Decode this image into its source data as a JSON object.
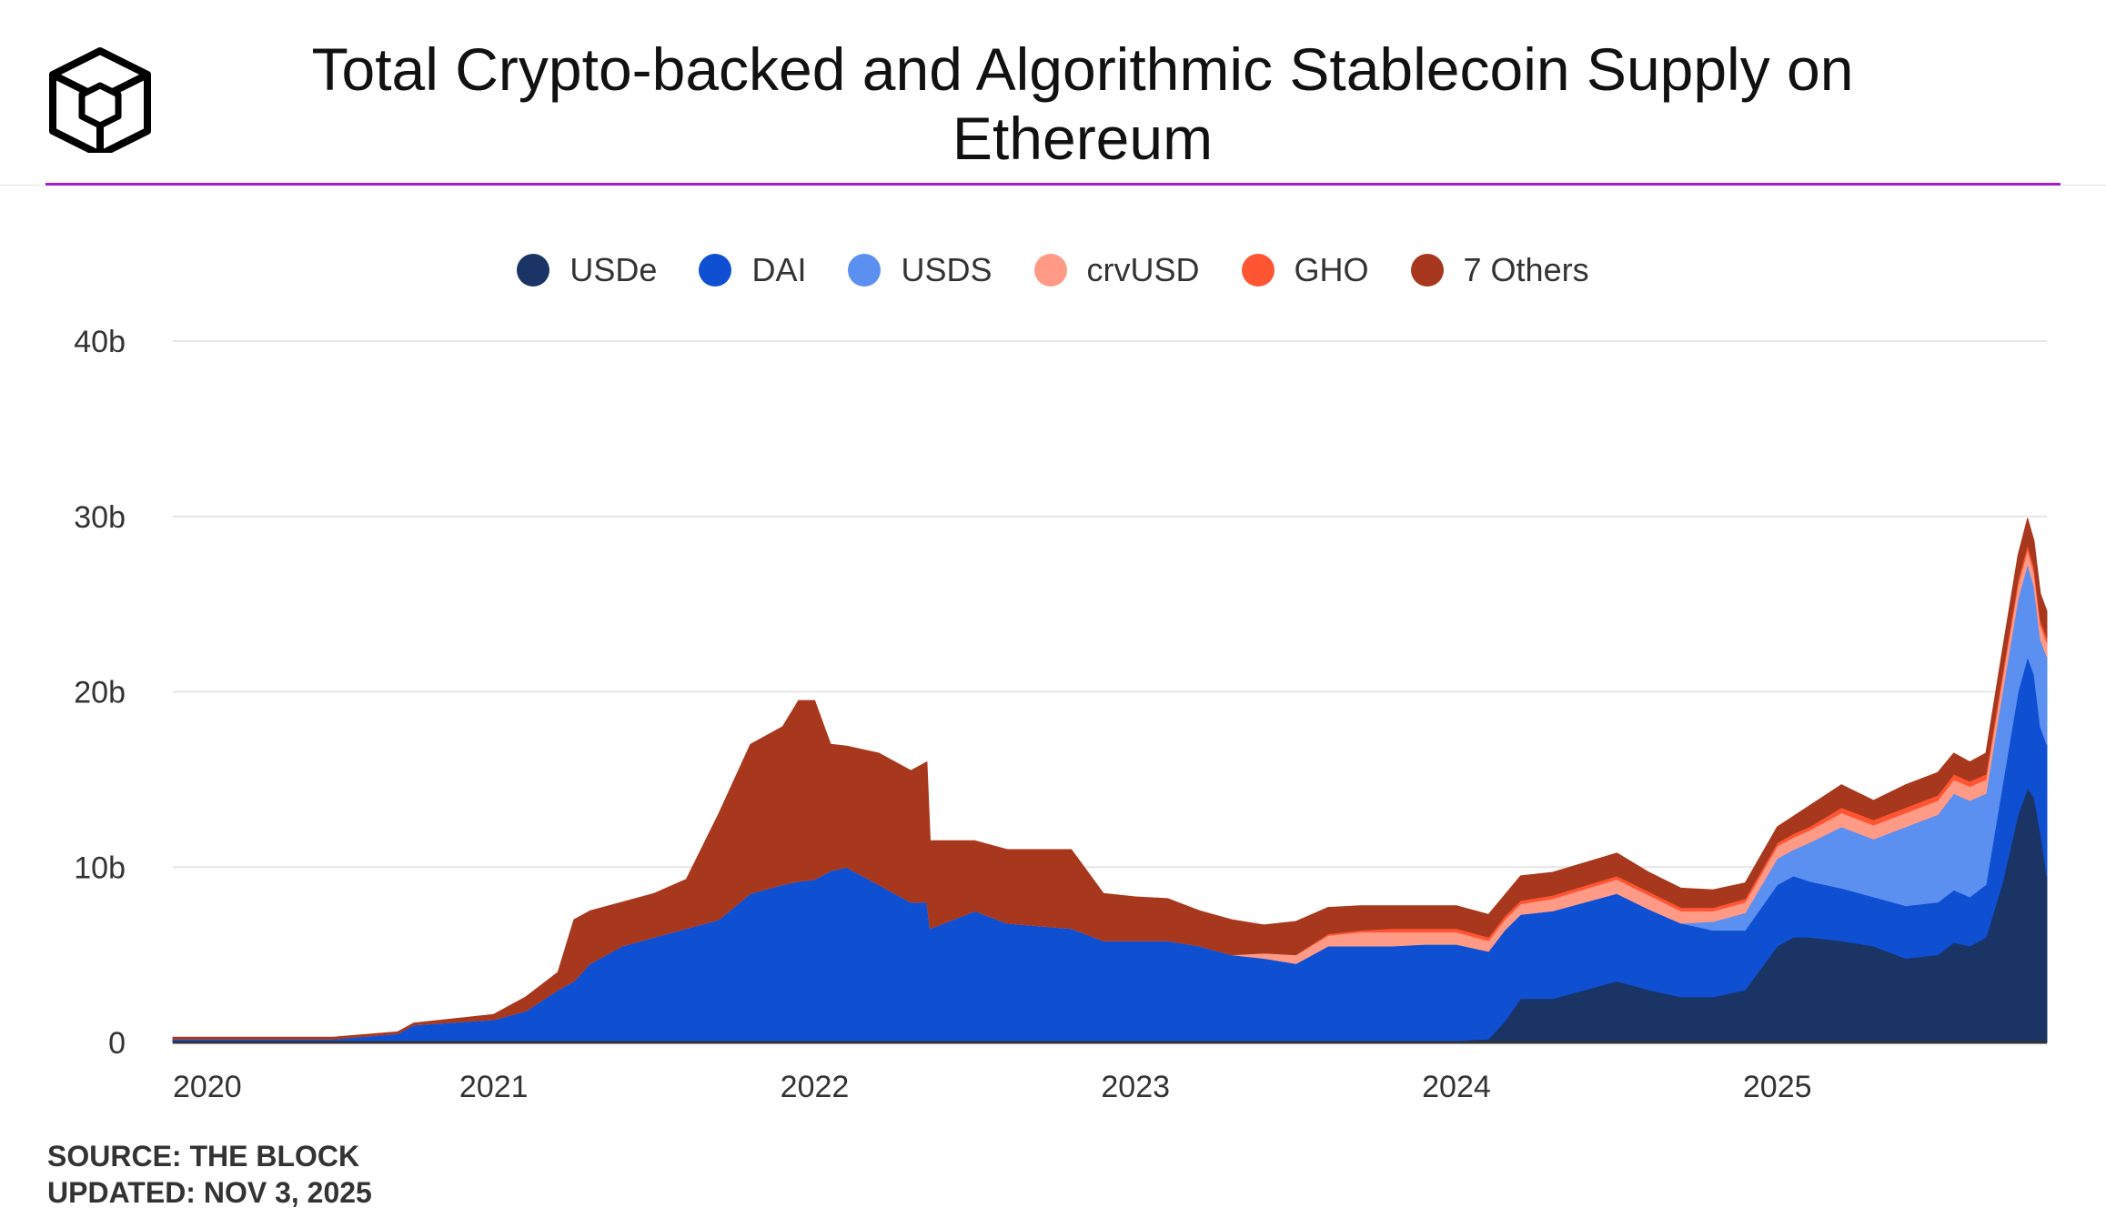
{
  "header": {
    "title_line1": "Total Crypto-backed and Algorithmic Stablecoin Supply on",
    "title_line2": "Ethereum"
  },
  "colors": {
    "accent": "#a11fd1",
    "grid": "#e6e6e6",
    "axis": "#333333"
  },
  "footer": {
    "source": "SOURCE: THE BLOCK",
    "updated": "UPDATED: NOV 3, 2025"
  },
  "chart_data": {
    "type": "area",
    "stacked": true,
    "title": "Total Crypto-backed and Algorithmic Stablecoin Supply on Ethereum",
    "xlabel": "",
    "ylabel": "",
    "xlim": [
      2020.0,
      2025.84
    ],
    "ylim": [
      0,
      40
    ],
    "y_ticks": [
      0,
      10,
      20,
      30,
      40
    ],
    "y_tick_labels": [
      "0",
      "10b",
      "20b",
      "30b",
      "40b"
    ],
    "x_ticks": [
      2020,
      2021,
      2022,
      2023,
      2024,
      2025
    ],
    "x_tick_labels": [
      "2020",
      "2021",
      "2022",
      "2023",
      "2024",
      "2025"
    ],
    "grid": true,
    "legend_position": "top-center",
    "legend": [
      "USDe",
      "DAI",
      "USDS",
      "crvUSD",
      "GHO",
      "7 Others"
    ],
    "x": [
      2020.0,
      2020.3,
      2020.5,
      2020.7,
      2020.75,
      2021.0,
      2021.1,
      2021.2,
      2021.25,
      2021.3,
      2021.4,
      2021.5,
      2021.6,
      2021.7,
      2021.8,
      2021.9,
      2021.95,
      2022.0,
      2022.05,
      2022.1,
      2022.2,
      2022.3,
      2022.35,
      2022.36,
      2022.5,
      2022.6,
      2022.8,
      2022.9,
      2023.0,
      2023.1,
      2023.2,
      2023.3,
      2023.4,
      2023.5,
      2023.6,
      2023.7,
      2023.8,
      2023.9,
      2024.0,
      2024.1,
      2024.15,
      2024.2,
      2024.3,
      2024.5,
      2024.6,
      2024.7,
      2024.8,
      2024.9,
      2025.0,
      2025.05,
      2025.1,
      2025.2,
      2025.3,
      2025.4,
      2025.5,
      2025.55,
      2025.6,
      2025.65,
      2025.7,
      2025.75,
      2025.78,
      2025.8,
      2025.82,
      2025.84
    ],
    "series": [
      {
        "name": "USDe",
        "color": "#1b3466",
        "values": [
          0,
          0,
          0,
          0,
          0,
          0,
          0,
          0,
          0,
          0,
          0,
          0,
          0,
          0,
          0,
          0,
          0,
          0,
          0,
          0,
          0,
          0,
          0,
          0,
          0,
          0,
          0,
          0,
          0,
          0,
          0,
          0,
          0,
          0,
          0,
          0,
          0,
          0,
          0.1,
          0.2,
          1.2,
          2.5,
          2.5,
          3.5,
          3,
          2.6,
          2.6,
          3,
          5.5,
          6,
          6,
          5.8,
          5.5,
          4.8,
          5,
          5.7,
          5.5,
          6,
          9,
          13,
          14.5,
          14,
          12,
          9.5
        ]
      },
      {
        "name": "DAI",
        "color": "#0f50d2",
        "values": [
          0.2,
          0.2,
          0.2,
          0.5,
          1.0,
          1.3,
          1.8,
          3.0,
          3.5,
          4.5,
          5.5,
          6.0,
          6.5,
          7.0,
          8.5,
          9.0,
          9.2,
          9.3,
          9.8,
          10.0,
          9.0,
          8.0,
          8.0,
          6.5,
          7.5,
          6.8,
          6.5,
          5.8,
          5.8,
          5.8,
          5.5,
          5.0,
          4.8,
          4.5,
          5.5,
          5.5,
          5.5,
          5.6,
          5.5,
          5.0,
          5.2,
          4.8,
          5.0,
          5.0,
          4.6,
          4.2,
          3.8,
          3.4,
          3.5,
          3.5,
          3.2,
          3.0,
          2.8,
          3.0,
          3.0,
          3.0,
          2.8,
          3.0,
          5.5,
          7.0,
          7.5,
          7.0,
          6.0,
          7.5
        ]
      },
      {
        "name": "USDS",
        "color": "#5b8ff0",
        "values": [
          0,
          0,
          0,
          0,
          0,
          0,
          0,
          0,
          0,
          0,
          0,
          0,
          0,
          0,
          0,
          0,
          0,
          0,
          0,
          0,
          0,
          0,
          0,
          0,
          0,
          0,
          0,
          0,
          0,
          0,
          0,
          0,
          0,
          0,
          0,
          0,
          0,
          0,
          0,
          0,
          0,
          0,
          0,
          0,
          0,
          0,
          0.5,
          1.0,
          1.5,
          1.5,
          2.2,
          3.5,
          3.3,
          4.5,
          5.0,
          5.5,
          5.5,
          5.2,
          5.3,
          5.3,
          5.3,
          5.0,
          5.0,
          5.0
        ]
      },
      {
        "name": "crvUSD",
        "color": "#ff9a87",
        "values": [
          0,
          0,
          0,
          0,
          0,
          0,
          0,
          0,
          0,
          0,
          0,
          0,
          0,
          0,
          0,
          0,
          0,
          0,
          0,
          0,
          0,
          0,
          0,
          0,
          0,
          0,
          0,
          0,
          0,
          0,
          0,
          0,
          0.3,
          0.5,
          0.6,
          0.8,
          0.8,
          0.7,
          0.7,
          0.6,
          0.6,
          0.6,
          0.7,
          0.8,
          0.8,
          0.7,
          0.6,
          0.6,
          0.7,
          0.7,
          0.7,
          0.8,
          0.8,
          0.8,
          0.8,
          0.8,
          0.8,
          0.8,
          0.8,
          0.8,
          0.8,
          0.8,
          0.8,
          0.8
        ]
      },
      {
        "name": "GHO",
        "color": "#ff5533",
        "values": [
          0,
          0,
          0,
          0,
          0,
          0,
          0,
          0,
          0,
          0,
          0,
          0,
          0,
          0,
          0,
          0,
          0,
          0,
          0,
          0,
          0,
          0,
          0,
          0,
          0,
          0,
          0,
          0,
          0,
          0,
          0,
          0,
          0,
          0,
          0.1,
          0.1,
          0.2,
          0.2,
          0.2,
          0.2,
          0.2,
          0.2,
          0.2,
          0.2,
          0.2,
          0.2,
          0.2,
          0.2,
          0.2,
          0.2,
          0.2,
          0.3,
          0.3,
          0.3,
          0.3,
          0.3,
          0.3,
          0.3,
          0.3,
          0.3,
          0.3,
          0.3,
          0.3,
          0.3
        ]
      },
      {
        "name": "7 Others",
        "color": "#a8381d",
        "values": [
          0.1,
          0.1,
          0.1,
          0.1,
          0.1,
          0.3,
          0.8,
          1.0,
          3.5,
          3.0,
          2.5,
          2.5,
          2.8,
          6.0,
          8.5,
          9.0,
          10.3,
          10.2,
          7.2,
          6.9,
          7.5,
          7.5,
          8.0,
          5.0,
          4.0,
          4.2,
          4.5,
          2.7,
          2.5,
          2.4,
          2.0,
          2.0,
          1.6,
          1.9,
          1.5,
          1.4,
          1.3,
          1.3,
          1.3,
          1.3,
          1.2,
          1.4,
          1.3,
          1.3,
          1.1,
          1.1,
          1.0,
          0.9,
          0.9,
          1.0,
          1.2,
          1.3,
          1.1,
          1.3,
          1.3,
          1.2,
          1.1,
          1.2,
          1.3,
          1.4,
          1.5,
          1.5,
          1.5,
          1.5
        ]
      }
    ]
  }
}
